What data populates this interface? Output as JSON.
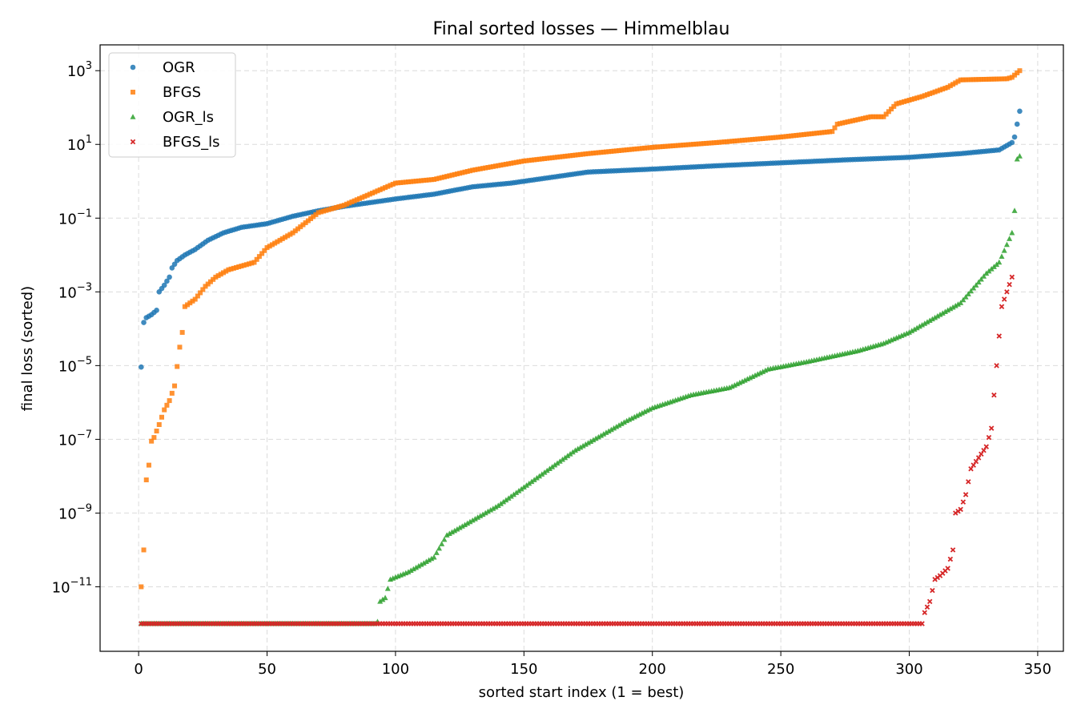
{
  "chart_data": {
    "type": "scatter",
    "title": "Final sorted losses — Himmelblau",
    "xlabel": "sorted start index (1 = best)",
    "ylabel": "final loss (sorted)",
    "xlim": [
      -15,
      360
    ],
    "ylim_log10": [
      -12.75,
      3.7
    ],
    "y_scale": "log",
    "grid": true,
    "legend_position": "top-left",
    "x_ticks": [
      0,
      50,
      100,
      150,
      200,
      250,
      300,
      350
    ],
    "x_tick_labels": [
      "0",
      "50",
      "100",
      "150",
      "200",
      "250",
      "300",
      "350"
    ],
    "y_ticks_log10": [
      -11,
      -9,
      -7,
      -5,
      -3,
      -1,
      1,
      3
    ],
    "y_tick_labels": [
      {
        "base": "10",
        "exp": "−11"
      },
      {
        "base": "10",
        "exp": "−9"
      },
      {
        "base": "10",
        "exp": "−7"
      },
      {
        "base": "10",
        "exp": "−5"
      },
      {
        "base": "10",
        "exp": "−3"
      },
      {
        "base": "10",
        "exp": "−1"
      },
      {
        "base": "10",
        "exp": "1"
      },
      {
        "base": "10",
        "exp": "3"
      }
    ],
    "n_points": 343,
    "series": [
      {
        "name": "OGR",
        "color": "#1f77b4",
        "marker": "circle",
        "curve_log10": [
          [
            1,
            -5.04
          ],
          [
            2,
            -3.83
          ],
          [
            3,
            -3.7
          ],
          [
            5,
            -3.62
          ],
          [
            7,
            -3.5
          ],
          [
            8,
            -3.0
          ],
          [
            10,
            -2.82
          ],
          [
            12,
            -2.6
          ],
          [
            13,
            -2.35
          ],
          [
            15,
            -2.15
          ],
          [
            18,
            -2.0
          ],
          [
            22,
            -1.85
          ],
          [
            27,
            -1.6
          ],
          [
            33,
            -1.4
          ],
          [
            40,
            -1.25
          ],
          [
            50,
            -1.15
          ],
          [
            60,
            -0.95
          ],
          [
            70,
            -0.8
          ],
          [
            80,
            -0.68
          ],
          [
            90,
            -0.58
          ],
          [
            100,
            -0.48
          ],
          [
            115,
            -0.35
          ],
          [
            130,
            -0.15
          ],
          [
            145,
            -0.05
          ],
          [
            160,
            0.1
          ],
          [
            175,
            0.25
          ],
          [
            200,
            0.33
          ],
          [
            225,
            0.42
          ],
          [
            250,
            0.5
          ],
          [
            275,
            0.58
          ],
          [
            300,
            0.65
          ],
          [
            320,
            0.75
          ],
          [
            335,
            0.85
          ],
          [
            340,
            1.05
          ],
          [
            341,
            1.2
          ],
          [
            342,
            1.55
          ],
          [
            343,
            1.9
          ]
        ]
      },
      {
        "name": "BFGS",
        "color": "#ff7f0e",
        "marker": "square",
        "curve_log10": [
          [
            1,
            -11.0
          ],
          [
            2,
            -10.0
          ],
          [
            3,
            -8.1
          ],
          [
            4,
            -7.7
          ],
          [
            5,
            -7.05
          ],
          [
            6,
            -6.95
          ],
          [
            8,
            -6.6
          ],
          [
            10,
            -6.2
          ],
          [
            12,
            -5.95
          ],
          [
            14,
            -5.55
          ],
          [
            16,
            -4.5
          ],
          [
            17,
            -4.1
          ],
          [
            18,
            -3.4
          ],
          [
            22,
            -3.2
          ],
          [
            26,
            -2.85
          ],
          [
            30,
            -2.6
          ],
          [
            35,
            -2.4
          ],
          [
            45,
            -2.2
          ],
          [
            50,
            -1.8
          ],
          [
            55,
            -1.6
          ],
          [
            60,
            -1.4
          ],
          [
            70,
            -0.85
          ],
          [
            80,
            -0.65
          ],
          [
            90,
            -0.35
          ],
          [
            100,
            -0.05
          ],
          [
            115,
            0.05
          ],
          [
            130,
            0.3
          ],
          [
            150,
            0.55
          ],
          [
            175,
            0.75
          ],
          [
            200,
            0.92
          ],
          [
            225,
            1.05
          ],
          [
            250,
            1.2
          ],
          [
            270,
            1.35
          ],
          [
            272,
            1.55
          ],
          [
            285,
            1.75
          ],
          [
            290,
            1.75
          ],
          [
            295,
            2.1
          ],
          [
            305,
            2.3
          ],
          [
            315,
            2.55
          ],
          [
            320,
            2.75
          ],
          [
            338,
            2.78
          ],
          [
            340,
            2.82
          ],
          [
            343,
            3.0
          ]
        ]
      },
      {
        "name": "OGR_ls",
        "color": "#2ca02c",
        "marker": "triangle",
        "flat_log10": -12.0,
        "curve_log10": [
          [
            1,
            -12.0
          ],
          [
            92,
            -12.0
          ],
          [
            93,
            -11.95
          ],
          [
            94,
            -11.4
          ],
          [
            96,
            -11.3
          ],
          [
            98,
            -10.8
          ],
          [
            105,
            -10.6
          ],
          [
            115,
            -10.2
          ],
          [
            120,
            -9.6
          ],
          [
            130,
            -9.2
          ],
          [
            140,
            -8.8
          ],
          [
            150,
            -8.3
          ],
          [
            160,
            -7.8
          ],
          [
            170,
            -7.3
          ],
          [
            180,
            -6.9
          ],
          [
            190,
            -6.5
          ],
          [
            200,
            -6.15
          ],
          [
            215,
            -5.8
          ],
          [
            230,
            -5.6
          ],
          [
            245,
            -5.1
          ],
          [
            260,
            -4.9
          ],
          [
            280,
            -4.6
          ],
          [
            290,
            -4.4
          ],
          [
            300,
            -4.1
          ],
          [
            310,
            -3.7
          ],
          [
            320,
            -3.3
          ],
          [
            330,
            -2.5
          ],
          [
            335,
            -2.2
          ],
          [
            340,
            -1.4
          ],
          [
            341,
            -0.8
          ],
          [
            342,
            0.6
          ],
          [
            343,
            0.68
          ]
        ]
      },
      {
        "name": "BFGS_ls",
        "color": "#d62728",
        "marker": "x",
        "flat_log10": -12.0,
        "curve_log10": [
          [
            1,
            -12.0
          ],
          [
            305,
            -12.0
          ],
          [
            306,
            -11.7
          ],
          [
            308,
            -11.4
          ],
          [
            310,
            -10.8
          ],
          [
            312,
            -10.7
          ],
          [
            315,
            -10.5
          ],
          [
            317,
            -10.0
          ],
          [
            318,
            -9.0
          ],
          [
            320,
            -8.9
          ],
          [
            322,
            -8.5
          ],
          [
            324,
            -7.8
          ],
          [
            328,
            -7.4
          ],
          [
            330,
            -7.2
          ],
          [
            332,
            -6.7
          ],
          [
            333,
            -5.8
          ],
          [
            336,
            -3.4
          ],
          [
            338,
            -3.0
          ],
          [
            340,
            -2.6
          ]
        ]
      }
    ]
  }
}
